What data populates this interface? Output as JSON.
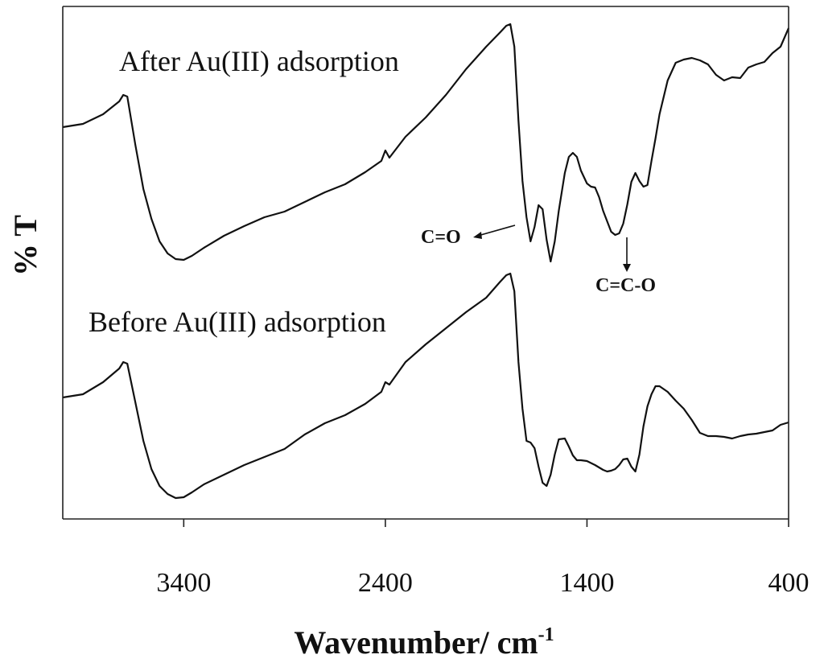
{
  "chart_data": {
    "type": "line",
    "title": "",
    "xlabel": "Wavenumber/ cm",
    "xlabel_sup": "-1",
    "ylabel": "% T",
    "x_reversed": true,
    "xlim": [
      4000,
      400
    ],
    "xticks": [
      3400,
      2400,
      1400,
      400
    ],
    "xtick_labels": [
      "3400",
      "2400",
      "1400",
      "400"
    ],
    "y_ticks_shown": false,
    "grid": false,
    "series": [
      {
        "name": "After Au(III) adsorption",
        "x": [
          4000,
          3900,
          3800,
          3720,
          3700,
          3680,
          3640,
          3600,
          3560,
          3520,
          3480,
          3440,
          3400,
          3360,
          3300,
          3200,
          3100,
          3000,
          2900,
          2800,
          2700,
          2600,
          2500,
          2420,
          2400,
          2380,
          2300,
          2200,
          2100,
          2000,
          1900,
          1830,
          1800,
          1780,
          1760,
          1740,
          1720,
          1700,
          1680,
          1660,
          1640,
          1620,
          1600,
          1580,
          1560,
          1540,
          1510,
          1490,
          1470,
          1450,
          1430,
          1400,
          1380,
          1360,
          1340,
          1320,
          1300,
          1280,
          1260,
          1240,
          1220,
          1200,
          1180,
          1160,
          1140,
          1120,
          1100,
          1080,
          1060,
          1040,
          1000,
          960,
          920,
          880,
          840,
          800,
          760,
          720,
          680,
          640,
          600,
          560,
          520,
          480,
          440,
          400
        ],
        "y": [
          158,
          154,
          142,
          126,
          118,
          120,
          180,
          235,
          272,
          300,
          315,
          322,
          323,
          318,
          308,
          293,
          281,
          270,
          263,
          251,
          239,
          229,
          214,
          200,
          187,
          196,
          170,
          146,
          118,
          86,
          58,
          40,
          32,
          30,
          58,
          150,
          225,
          270,
          300,
          282,
          255,
          260,
          298,
          325,
          300,
          262,
          215,
          195,
          190,
          195,
          212,
          228,
          232,
          233,
          245,
          262,
          275,
          288,
          292,
          290,
          278,
          254,
          226,
          215,
          225,
          232,
          230,
          200,
          172,
          142,
          100,
          78,
          74,
          72,
          75,
          80,
          93,
          100,
          96,
          97,
          84,
          80,
          77,
          66,
          58,
          35
        ]
      },
      {
        "name": "Before Au(III) adsorption",
        "x": [
          4000,
          3900,
          3800,
          3720,
          3700,
          3680,
          3640,
          3600,
          3560,
          3520,
          3480,
          3440,
          3400,
          3360,
          3300,
          3200,
          3100,
          3000,
          2900,
          2800,
          2700,
          2600,
          2500,
          2420,
          2400,
          2380,
          2300,
          2200,
          2100,
          2000,
          1900,
          1830,
          1800,
          1780,
          1760,
          1740,
          1720,
          1700,
          1680,
          1660,
          1640,
          1620,
          1600,
          1580,
          1560,
          1540,
          1510,
          1490,
          1470,
          1450,
          1430,
          1400,
          1360,
          1320,
          1300,
          1280,
          1260,
          1240,
          1220,
          1200,
          1180,
          1160,
          1140,
          1120,
          1100,
          1080,
          1060,
          1040,
          1000,
          960,
          920,
          880,
          840,
          800,
          760,
          720,
          680,
          640,
          600,
          560,
          520,
          480,
          440,
          400
        ],
        "y": [
          494,
          490,
          475,
          458,
          450,
          452,
          500,
          548,
          583,
          604,
          614,
          619,
          618,
          612,
          602,
          590,
          578,
          568,
          558,
          540,
          526,
          516,
          502,
          487,
          475,
          478,
          450,
          428,
          408,
          388,
          370,
          350,
          342,
          340,
          362,
          450,
          508,
          548,
          550,
          557,
          580,
          600,
          604,
          590,
          565,
          546,
          545,
          555,
          566,
          572,
          572,
          573,
          578,
          584,
          586,
          585,
          583,
          578,
          571,
          570,
          580,
          586,
          565,
          530,
          505,
          490,
          480,
          480,
          487,
          498,
          508,
          522,
          538,
          542,
          542,
          543,
          545,
          542,
          540,
          539,
          537,
          535,
          528,
          525
        ]
      }
    ],
    "annotations": [
      {
        "text": "C=O"
      },
      {
        "text": "C=C-O"
      }
    ]
  }
}
